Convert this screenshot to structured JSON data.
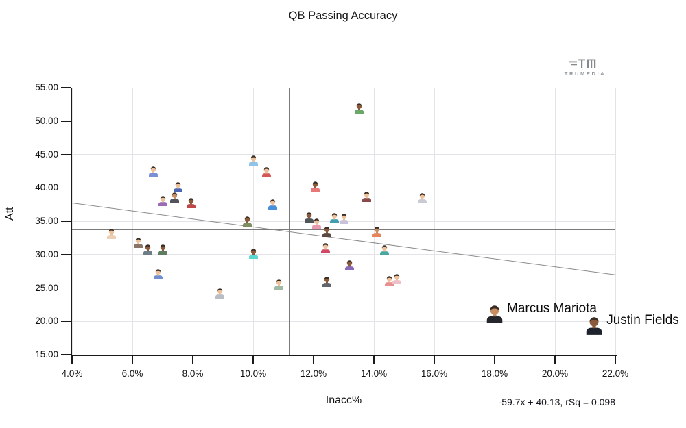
{
  "logo": {
    "brand": "TRUMEDIA",
    "icon": "trumedia-tm-icon"
  },
  "chart_data": {
    "type": "scatter",
    "title": "QB Passing Accuracy",
    "xlabel": "Inacc%",
    "ylabel": "Att",
    "xlim": [
      4,
      22
    ],
    "ylim": [
      15,
      55
    ],
    "grid": true,
    "x_ticks": [
      {
        "v": 4,
        "label": "4.0%"
      },
      {
        "v": 6,
        "label": "6.0%"
      },
      {
        "v": 8,
        "label": "8.0%"
      },
      {
        "v": 10,
        "label": "10.0%"
      },
      {
        "v": 12,
        "label": "12.0%"
      },
      {
        "v": 14,
        "label": "14.0%"
      },
      {
        "v": 16,
        "label": "16.0%"
      },
      {
        "v": 18,
        "label": "18.0%"
      },
      {
        "v": 20,
        "label": "20.0%"
      },
      {
        "v": 22,
        "label": "22.0%"
      }
    ],
    "y_ticks": [
      {
        "v": 15,
        "label": "15.00"
      },
      {
        "v": 20,
        "label": "20.00"
      },
      {
        "v": 25,
        "label": "25.00"
      },
      {
        "v": 30,
        "label": "30.00"
      },
      {
        "v": 35,
        "label": "35.00"
      },
      {
        "v": 40,
        "label": "40.00"
      },
      {
        "v": 45,
        "label": "45.00"
      },
      {
        "v": 50,
        "label": "50.00"
      },
      {
        "v": 55,
        "label": "55.00"
      }
    ],
    "reference_lines": {
      "mean_x": 11.2,
      "mean_y": 33.7
    },
    "trend": {
      "slope": -59.7,
      "intercept": 40.13,
      "rsq": 0.098,
      "label": "-59.7x + 40.13, rSq = 0.098"
    },
    "colors": {
      "grid": "#e3e3e8",
      "axis": "#1a1a1a",
      "trend_line": "#8a8a8a",
      "reference_line": "#7a7a7a"
    },
    "points": [
      {
        "x": 5.3,
        "y": 33.2,
        "jersey": "#ead1b5",
        "skin": "light"
      },
      {
        "x": 6.2,
        "y": 31.8,
        "jersey": "#8a7668",
        "skin": "light"
      },
      {
        "x": 6.5,
        "y": 30.8,
        "jersey": "#6d7e88",
        "skin": "dark"
      },
      {
        "x": 6.7,
        "y": 42.5,
        "jersey": "#7c8fd6",
        "skin": "light"
      },
      {
        "x": 7.0,
        "y": 30.8,
        "jersey": "#5f7d62",
        "skin": "dark"
      },
      {
        "x": 7.0,
        "y": 38.1,
        "jersey": "#9b6bb5",
        "skin": "light"
      },
      {
        "x": 7.5,
        "y": 40.1,
        "jersey": "#4a66b0",
        "skin": "light"
      },
      {
        "x": 7.4,
        "y": 38.6,
        "jersey": "#4f555a",
        "skin": "tan"
      },
      {
        "x": 7.95,
        "y": 37.8,
        "jersey": "#c04848",
        "skin": "dark"
      },
      {
        "x": 6.85,
        "y": 27.1,
        "jersey": "#6f8fd0",
        "skin": "light"
      },
      {
        "x": 8.9,
        "y": 24.2,
        "jersey": "#b9bec4",
        "skin": "light"
      },
      {
        "x": 9.8,
        "y": 35.0,
        "jersey": "#7d8f62",
        "skin": "dark"
      },
      {
        "x": 10.0,
        "y": 44.1,
        "jersey": "#8fc4e8",
        "skin": "light"
      },
      {
        "x": 10.45,
        "y": 42.4,
        "jersey": "#d45858",
        "skin": "light"
      },
      {
        "x": 10.65,
        "y": 37.6,
        "jersey": "#4a90d9",
        "skin": "light"
      },
      {
        "x": 10.0,
        "y": 30.2,
        "jersey": "#58d8d0",
        "skin": "dark"
      },
      {
        "x": 10.85,
        "y": 25.6,
        "jersey": "#9fb9a3",
        "skin": "light"
      },
      {
        "x": 12.05,
        "y": 40.2,
        "jersey": "#e87878",
        "skin": "dark"
      },
      {
        "x": 11.85,
        "y": 35.6,
        "jersey": "#4f555a",
        "skin": "dark"
      },
      {
        "x": 12.1,
        "y": 34.7,
        "jersey": "#e89ab0",
        "skin": "light"
      },
      {
        "x": 12.45,
        "y": 33.5,
        "jersey": "#5a4a42",
        "skin": "dark"
      },
      {
        "x": 12.7,
        "y": 35.5,
        "jersey": "#3f9fb0",
        "skin": "light"
      },
      {
        "x": 13.0,
        "y": 35.4,
        "jersey": "#c9c2dd",
        "skin": "light"
      },
      {
        "x": 12.4,
        "y": 31.0,
        "jersey": "#d04868",
        "skin": "light"
      },
      {
        "x": 12.45,
        "y": 26.0,
        "jersey": "#60666c",
        "skin": "dark"
      },
      {
        "x": 13.2,
        "y": 28.4,
        "jersey": "#8a6ab8",
        "skin": "dark"
      },
      {
        "x": 13.5,
        "y": 51.9,
        "jersey": "#6aa86a",
        "skin": "dark"
      },
      {
        "x": 13.75,
        "y": 38.7,
        "jersey": "#8a4a4a",
        "skin": "light"
      },
      {
        "x": 14.1,
        "y": 33.5,
        "jersey": "#e8845c",
        "skin": "tan"
      },
      {
        "x": 14.35,
        "y": 30.7,
        "jersey": "#48a8a0",
        "skin": "light"
      },
      {
        "x": 14.5,
        "y": 26.1,
        "jersey": "#e89090",
        "skin": "light"
      },
      {
        "x": 14.75,
        "y": 26.4,
        "jersey": "#eec0c8",
        "skin": "light"
      },
      {
        "x": 15.6,
        "y": 38.5,
        "jersey": "#c8ccd2",
        "skin": "light"
      },
      {
        "x": 18.0,
        "y": 21.2,
        "jersey": "#24262c",
        "skin": "tan",
        "name": "Marcus Mariota",
        "size": "large"
      },
      {
        "x": 21.3,
        "y": 19.4,
        "jersey": "#1e222c",
        "skin": "dark",
        "name": "Justin Fields",
        "size": "large"
      }
    ]
  }
}
